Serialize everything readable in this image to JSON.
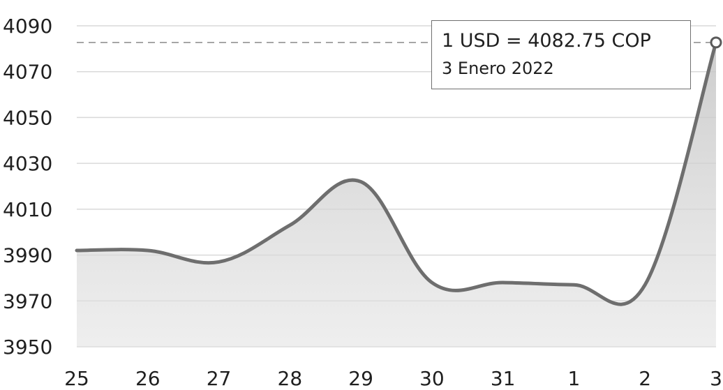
{
  "chart_data": {
    "type": "area",
    "categories": [
      "25",
      "26",
      "27",
      "28",
      "29",
      "30",
      "31",
      "1",
      "2",
      "3"
    ],
    "values": [
      3992,
      3992,
      3987,
      4003,
      4022,
      3978,
      3978,
      3977,
      3977,
      4082.75
    ],
    "ylim": [
      3950,
      4090
    ],
    "yticks": [
      "4090",
      "4070",
      "4050",
      "4030",
      "4010",
      "3990",
      "3970",
      "3950"
    ],
    "grid": true,
    "line_color": "#6e6e6e",
    "fill_color": "#cfcfcf",
    "reference_line": {
      "value": 4082.75
    },
    "highlight_index": 9
  },
  "tooltip": {
    "rate": "1 USD = 4082.75 COP",
    "date": "3 Enero 2022"
  }
}
